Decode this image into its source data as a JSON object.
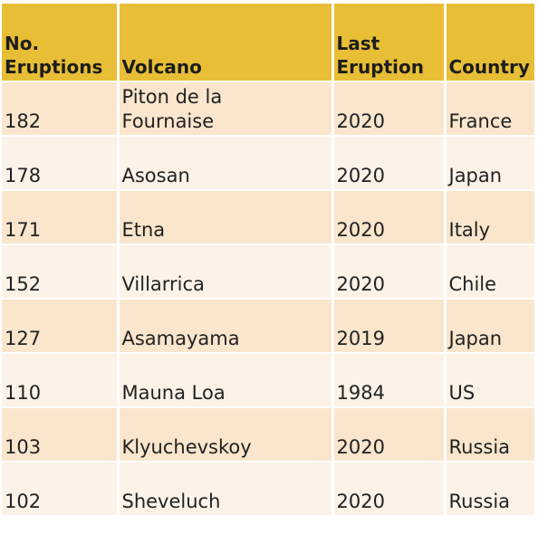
{
  "table": {
    "headers": {
      "eruptions_line1": "No.",
      "eruptions_line2": "Eruptions",
      "volcano": "Volcano",
      "last_eruption_line1": "Last",
      "last_eruption_line2": "Eruption",
      "country": "Country"
    },
    "rows": [
      {
        "eruptions": "182",
        "volcano_line1": "Piton de la",
        "volcano_line2": "Fournaise",
        "last_eruption": "2020",
        "country": "France"
      },
      {
        "eruptions": "178",
        "volcano": "Asosan",
        "last_eruption": "2020",
        "country": "Japan"
      },
      {
        "eruptions": "171",
        "volcano": "Etna",
        "last_eruption": "2020",
        "country": "Italy"
      },
      {
        "eruptions": "152",
        "volcano": "Villarrica",
        "last_eruption": "2020",
        "country": "Chile"
      },
      {
        "eruptions": "127",
        "volcano": "Asamayama",
        "last_eruption": "2019",
        "country": "Japan"
      },
      {
        "eruptions": "110",
        "volcano": "Mauna Loa",
        "last_eruption": "1984",
        "country": "US"
      },
      {
        "eruptions": "103",
        "volcano": "Klyuchevskoy",
        "last_eruption": "2020",
        "country": "Russia"
      },
      {
        "eruptions": "102",
        "volcano": "Sheveluch",
        "last_eruption": "2020",
        "country": "Russia"
      }
    ]
  }
}
